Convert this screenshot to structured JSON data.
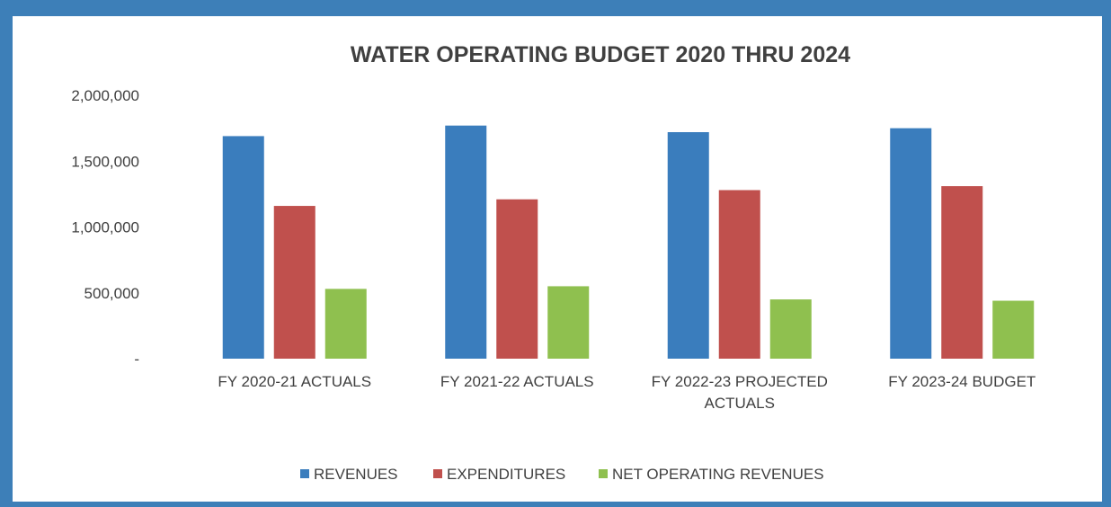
{
  "chart_data": {
    "type": "bar",
    "title": "WATER OPERATING BUDGET 2020 THRU 2024",
    "categories": [
      [
        "FY 2020-21 ACTUALS"
      ],
      [
        "FY 2021-22 ACTUALS"
      ],
      [
        "FY 2022-23 PROJECTED",
        "ACTUALS"
      ],
      [
        "FY 2023-24 BUDGET"
      ]
    ],
    "series": [
      {
        "name": "REVENUES",
        "color": "#3a7dbd",
        "values": [
          1690000,
          1770000,
          1720000,
          1750000
        ]
      },
      {
        "name": "EXPENDITURES",
        "color": "#c0504d",
        "values": [
          1160000,
          1210000,
          1280000,
          1310000
        ]
      },
      {
        "name": "NET OPERATING REVENUES",
        "color": "#8fc04f",
        "values": [
          530000,
          550000,
          450000,
          440000
        ]
      }
    ],
    "y_ticks": [
      {
        "value": 0,
        "label": "-"
      },
      {
        "value": 500000,
        "label": "500,000"
      },
      {
        "value": 1000000,
        "label": "1,000,000"
      },
      {
        "value": 1500000,
        "label": "1,500,000"
      },
      {
        "value": 2000000,
        "label": "2,000,000"
      }
    ],
    "ylim": [
      0,
      2000000
    ],
    "grid": false,
    "legend_position": "bottom-center"
  }
}
